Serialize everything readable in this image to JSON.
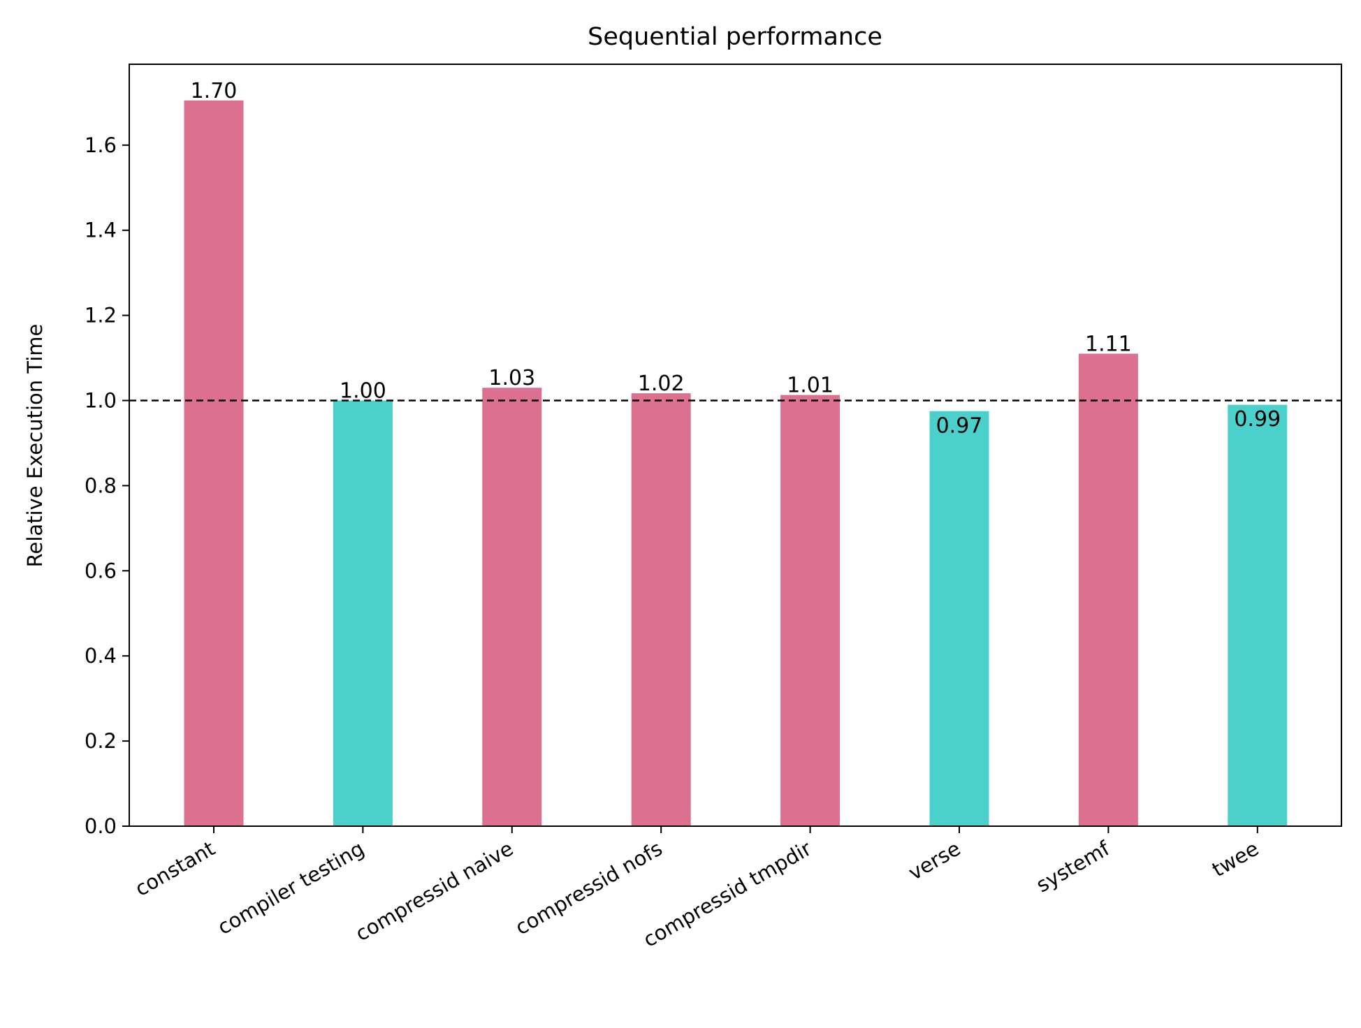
{
  "chart_data": {
    "type": "bar",
    "title": "Sequential performance",
    "xlabel": "",
    "ylabel": "Relative Execution Time",
    "categories": [
      "constant",
      "compiler testing",
      "compressid naive",
      "compressid nofs",
      "compressid tmpdir",
      "verse",
      "systemf",
      "twee"
    ],
    "values": [
      1.705,
      1.0,
      1.03,
      1.017,
      1.013,
      0.975,
      1.11,
      0.99
    ],
    "value_labels": [
      "1.70",
      "1.00",
      "1.03",
      "1.02",
      "1.01",
      "0.97",
      "1.11",
      "0.99"
    ],
    "ylim": [
      0,
      1.79
    ],
    "yticks": [
      0.0,
      0.2,
      0.4,
      0.6,
      0.8,
      1.0,
      1.2,
      1.4,
      1.6
    ],
    "ytick_labels": [
      "0.0",
      "0.2",
      "0.4",
      "0.6",
      "0.8",
      "1.0",
      "1.2",
      "1.4",
      "1.6"
    ],
    "reference_line": {
      "y": 1.0,
      "style": "dashed",
      "color": "#000000"
    },
    "colors": {
      "above": "#dc7090",
      "below": "#4bd0cc"
    },
    "grid": false,
    "legend": "none"
  }
}
